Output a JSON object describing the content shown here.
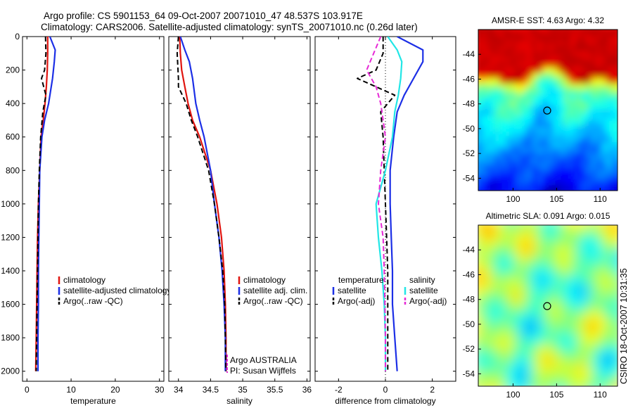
{
  "header": {
    "title_line1": "Argo profile: CS 5901153_64 09-Oct-2007 20071010_47 48.537S 103.917E",
    "title_line2": "Climatology: CARS2006. Satellite-adjusted climatology: synTS_20071010.nc (0.26d later)"
  },
  "watermark": "CSIRO 18-Oct-2007 10:31:35",
  "colors": {
    "climatology": "#e0140f",
    "satellite": "#1c2fe6",
    "argo": "#000000",
    "salinity_satellite": "#22e6e6",
    "salinity_argo": "#e629d6"
  },
  "chart_data": [
    {
      "type": "line",
      "id": "temperature",
      "xlabel": "temperature",
      "ylabel": "",
      "xlim": [
        -1,
        31
      ],
      "ylim": [
        2060,
        0
      ],
      "xticks": [
        0,
        10,
        20,
        30
      ],
      "yticks": [
        0,
        200,
        400,
        600,
        800,
        1000,
        1200,
        1400,
        1600,
        1800,
        2000
      ],
      "legend": [
        "climatology",
        "satellite-adjusted climatology",
        "Argo(..raw -QC)"
      ],
      "legend_placement": "lower-right",
      "series": [
        {
          "name": "climatology",
          "color": "#e0140f",
          "style": "solid",
          "x": [
            4.7,
            4.7,
            4.6,
            4.4,
            4.1,
            3.7,
            3.2,
            2.9,
            2.6,
            2.4,
            2.3,
            2.2,
            2.1,
            2.0
          ],
          "y": [
            0,
            100,
            200,
            300,
            400,
            500,
            600,
            800,
            1000,
            1200,
            1400,
            1600,
            1800,
            2000
          ]
        },
        {
          "name": "satellite-adjusted climatology",
          "color": "#1c2fe6",
          "style": "solid",
          "x": [
            5.2,
            6.4,
            6.2,
            5.8,
            4.9,
            4.0,
            3.4,
            2.9,
            2.8,
            2.7,
            2.6,
            2.6,
            2.5,
            2.5
          ],
          "y": [
            0,
            80,
            150,
            250,
            400,
            500,
            600,
            800,
            1000,
            1200,
            1400,
            1600,
            1800,
            2000
          ]
        },
        {
          "name": "Argo(..raw -QC)",
          "color": "#000000",
          "style": "dashed",
          "x": [
            4.2,
            4.3,
            4.0,
            3.3,
            4.3,
            3.6,
            3.1,
            2.8,
            2.6,
            2.5,
            2.4,
            2.3,
            2.2,
            2.1
          ],
          "y": [
            0,
            100,
            200,
            250,
            350,
            450,
            600,
            800,
            1000,
            1200,
            1400,
            1600,
            1800,
            2000
          ]
        }
      ]
    },
    {
      "type": "line",
      "id": "salinity",
      "xlabel": "salinity",
      "ylabel": "",
      "xlim": [
        33.85,
        36.05
      ],
      "ylim": [
        2060,
        0
      ],
      "xticks": [
        34,
        34.5,
        35,
        35.5,
        36
      ],
      "legend": [
        "climatology",
        "satellite adj. clim.",
        "Argo(..raw -QC)"
      ],
      "legend_placement": "lower-right",
      "annotation_lines": [
        "Argo AUSTRALIA",
        "PI: Susan Wijffels"
      ],
      "series": [
        {
          "name": "climatology",
          "color": "#e0140f",
          "style": "solid",
          "x": [
            34.02,
            34.03,
            34.05,
            34.1,
            34.15,
            34.22,
            34.33,
            34.5,
            34.6,
            34.67,
            34.71,
            34.73,
            34.74,
            34.74
          ],
          "y": [
            0,
            100,
            200,
            300,
            400,
            500,
            600,
            800,
            1000,
            1200,
            1400,
            1600,
            1800,
            2000
          ]
        },
        {
          "name": "satellite adj. clim.",
          "color": "#1c2fe6",
          "style": "solid",
          "x": [
            34.03,
            34.1,
            34.17,
            34.22,
            34.27,
            34.33,
            34.4,
            34.5,
            34.56,
            34.63,
            34.68,
            34.71,
            34.73,
            34.73
          ],
          "y": [
            0,
            80,
            150,
            250,
            400,
            500,
            600,
            800,
            1000,
            1200,
            1400,
            1600,
            1800,
            2000
          ]
        },
        {
          "name": "Argo(..raw -QC)",
          "color": "#000000",
          "style": "dashed",
          "x": [
            34.0,
            33.98,
            34.0,
            34.0,
            34.12,
            34.2,
            34.3,
            34.47,
            34.56,
            34.63,
            34.69,
            34.72,
            34.73,
            34.74
          ],
          "y": [
            0,
            100,
            250,
            300,
            400,
            500,
            600,
            800,
            1000,
            1200,
            1400,
            1600,
            1800,
            2000
          ]
        }
      ]
    },
    {
      "type": "line",
      "id": "difference",
      "xlabel": "difference from climatology",
      "ylabel": "",
      "xlim": [
        -3,
        3
      ],
      "ylim": [
        2060,
        0
      ],
      "xticks": [
        -2,
        0,
        2
      ],
      "legend_groups": [
        {
          "title": "temperature",
          "entries": [
            "satellite",
            "Argo(-adj)"
          ]
        },
        {
          "title": "salinity",
          "entries": [
            "satellite",
            "Argo(-adj)"
          ]
        }
      ],
      "legend_placement": "lower-right",
      "series": [
        {
          "name": "temperature satellite",
          "color": "#1c2fe6",
          "style": "solid",
          "x": [
            0.5,
            1.6,
            1.6,
            1.2,
            0.8,
            0.5,
            0.35,
            0.2,
            0.2,
            0.25,
            0.3,
            0.3,
            0.4,
            0.5
          ],
          "y": [
            0,
            80,
            150,
            250,
            350,
            450,
            600,
            800,
            1000,
            1200,
            1400,
            1600,
            1800,
            2000
          ]
        },
        {
          "name": "temperature Argo(-adj)",
          "color": "#000000",
          "style": "dashed",
          "x": [
            -0.1,
            -0.1,
            -0.4,
            -1.2,
            0.4,
            -0.2,
            -0.1,
            -0.05,
            0.0,
            0.05,
            0.1,
            0.1,
            0.1,
            0.1
          ],
          "y": [
            0,
            100,
            200,
            250,
            350,
            450,
            600,
            800,
            1000,
            1200,
            1400,
            1600,
            1800,
            2000
          ]
        },
        {
          "name": "salinity satellite",
          "color": "#22e6e6",
          "style": "solid",
          "x": [
            0.1,
            0.5,
            0.7,
            0.65,
            0.55,
            0.4,
            0.3,
            0.0,
            -0.4,
            -0.3,
            -0.15,
            -0.05,
            0.0,
            0.0
          ],
          "y": [
            0,
            80,
            150,
            250,
            350,
            450,
            600,
            800,
            1000,
            1200,
            1400,
            1600,
            1800,
            2000
          ]
        },
        {
          "name": "salinity Argo(-adj)",
          "color": "#e629d6",
          "style": "dashed",
          "x": [
            -0.2,
            -0.5,
            -0.8,
            -0.4,
            -0.2,
            -0.1,
            0.0,
            -0.2,
            -0.3,
            -0.1,
            -0.05,
            -0.02,
            0.0,
            0.0
          ],
          "y": [
            0,
            100,
            200,
            300,
            400,
            500,
            600,
            800,
            1000,
            1200,
            1400,
            1600,
            1800,
            2000
          ]
        }
      ]
    },
    {
      "type": "heatmap",
      "id": "sst",
      "title": "AMSR-E SST: 4.63 Argo: 4.32",
      "xlim": [
        96,
        112
      ],
      "ylim": [
        -55,
        -42
      ],
      "xticks": [
        100,
        105,
        110
      ],
      "yticks": [
        -44,
        -46,
        -48,
        -50,
        -52,
        -54
      ],
      "profile_marker": {
        "x": 103.917,
        "y": -48.537
      }
    },
    {
      "type": "heatmap",
      "id": "sla",
      "title": "Altimetric SLA: 0.091 Argo: 0.015",
      "xlim": [
        96,
        112
      ],
      "ylim": [
        -55,
        -42
      ],
      "xticks": [
        100,
        105,
        110
      ],
      "yticks": [
        -44,
        -46,
        -48,
        -50,
        -52,
        -54
      ],
      "profile_marker": {
        "x": 103.917,
        "y": -48.537
      }
    }
  ]
}
